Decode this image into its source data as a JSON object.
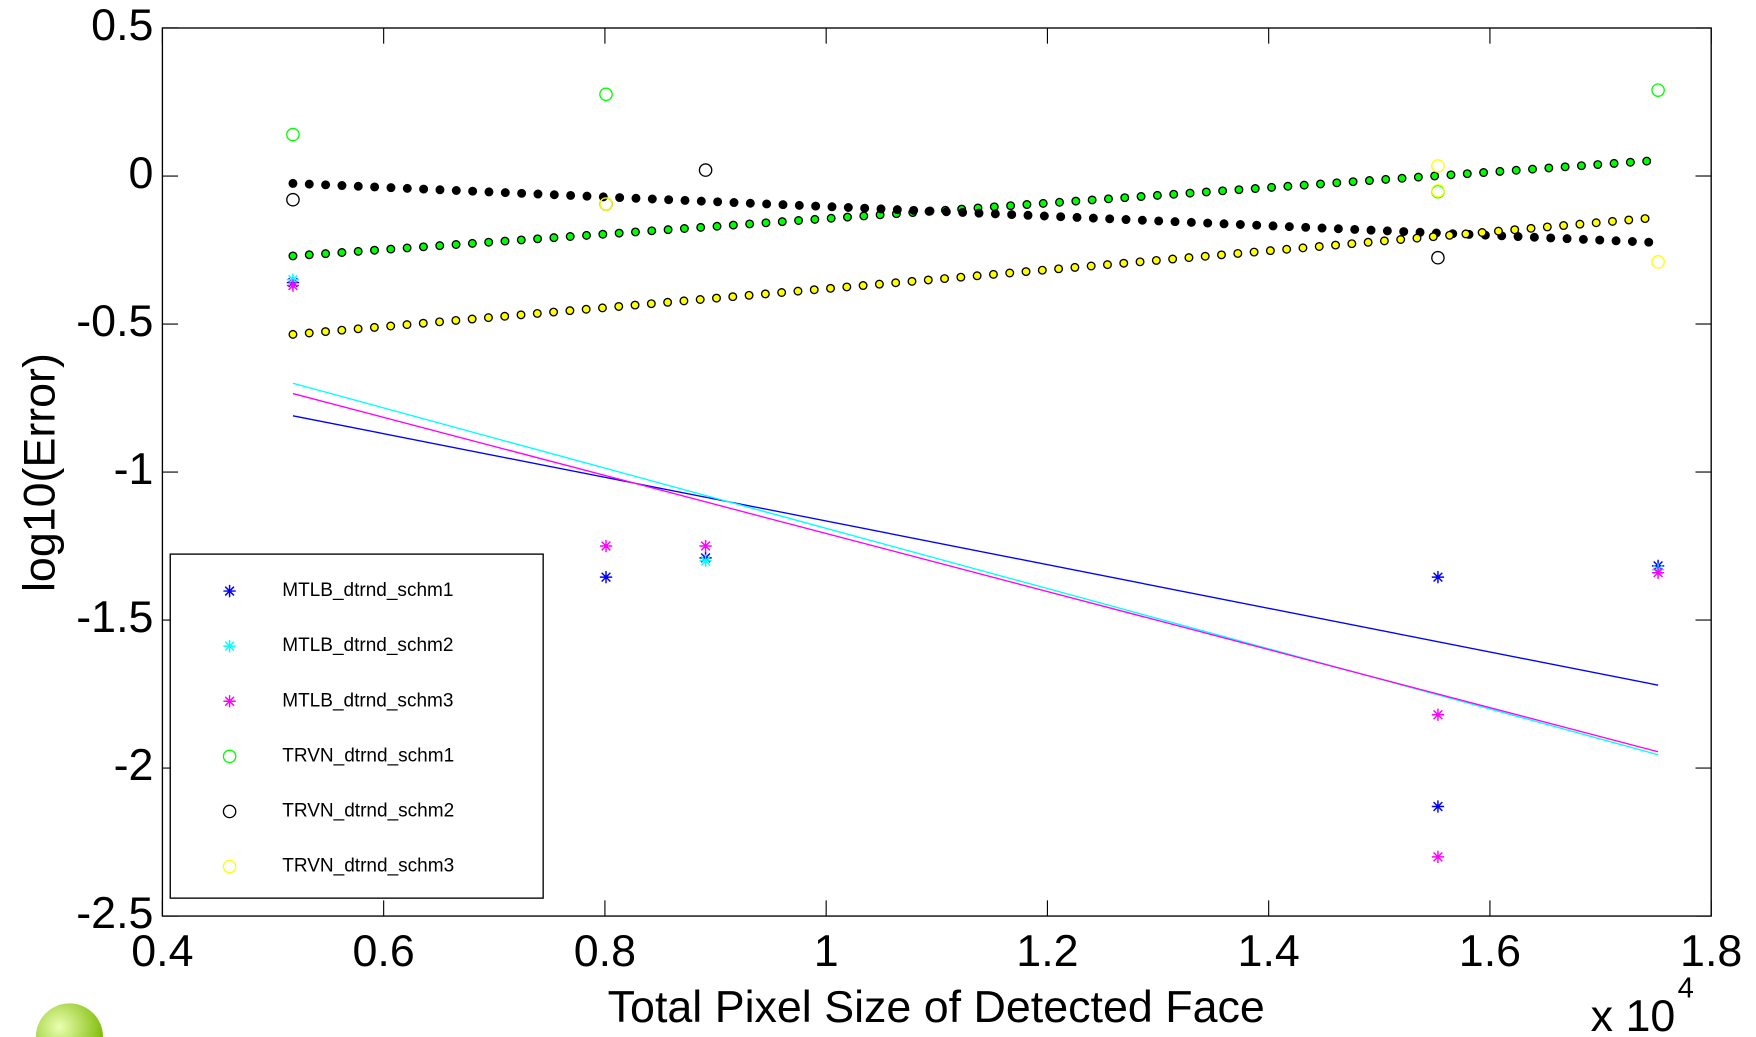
{
  "chart_data": {
    "type": "scatter",
    "xlabel": "Total Pixel Size of Detected Face",
    "ylabel": "log10(Error)",
    "x_multiplier": {
      "base": "x 10",
      "exponent": "4"
    },
    "xlim": [
      0.4,
      1.8
    ],
    "ylim": [
      -2.5,
      0.5
    ],
    "xticks": [
      0.4,
      0.6,
      0.8,
      1,
      1.2,
      1.4,
      1.6,
      1.8
    ],
    "yticks": [
      0.5,
      0,
      -0.5,
      -1,
      -1.5,
      -2,
      -2.5
    ],
    "grid": false,
    "legend": "lower left",
    "series": [
      {
        "name": "MTLB_dtrnd_schm1",
        "color": "#0000ff",
        "marker": "asterisk",
        "x": [
          0.518,
          0.801,
          0.891,
          1.553,
          1.553,
          1.752
        ],
        "values": [
          -0.36,
          -1.355,
          -1.29,
          -1.355,
          -2.13,
          -1.317
        ]
      },
      {
        "name": "MTLB_dtrnd_schm2",
        "color": "#00ffff",
        "marker": "asterisk",
        "x": [
          0.518,
          0.891,
          1.752
        ],
        "values": [
          -0.35,
          -1.3,
          -1.33
        ]
      },
      {
        "name": "MTLB_dtrnd_schm3",
        "color": "#ff00ff",
        "marker": "asterisk",
        "x": [
          0.518,
          0.801,
          0.891,
          1.553,
          1.553,
          1.752
        ],
        "values": [
          -0.37,
          -1.25,
          -1.25,
          -1.82,
          -2.3,
          -1.34
        ]
      },
      {
        "name": "TRVN_dtrnd_schm1",
        "color": "#00ff00",
        "marker": "circle",
        "x": [
          0.518,
          0.801,
          1.553,
          1.752
        ],
        "values": [
          0.14,
          0.276,
          -0.053,
          0.29
        ]
      },
      {
        "name": "TRVN_dtrnd_schm2",
        "color": "#000000",
        "marker": "circle",
        "x": [
          0.518,
          0.801,
          0.891,
          1.553
        ],
        "values": [
          -0.08,
          -0.095,
          0.02,
          -0.276
        ]
      },
      {
        "name": "TRVN_dtrnd_schm3",
        "color": "#ffff00",
        "marker": "circle",
        "x": [
          0.801,
          1.553,
          1.553,
          1.752
        ],
        "values": [
          -0.095,
          0.034,
          -0.05,
          -0.29
        ]
      }
    ],
    "fit_lines": [
      {
        "color": "#0000ff",
        "style": "solid",
        "x": [
          0.518,
          1.752
        ],
        "values": [
          -0.81,
          -1.72
        ]
      },
      {
        "color": "#00ffff",
        "style": "solid",
        "x": [
          0.518,
          1.752
        ],
        "values": [
          -0.7,
          -1.955
        ]
      },
      {
        "color": "#ff00ff",
        "style": "solid",
        "x": [
          0.518,
          1.752
        ],
        "values": [
          -0.735,
          -1.945
        ]
      },
      {
        "color": "#00ff00",
        "style": "dotted",
        "x": [
          0.518,
          1.752
        ],
        "values": [
          -0.27,
          0.053
        ]
      },
      {
        "color": "#000000",
        "style": "dotted",
        "x": [
          0.518,
          1.752
        ],
        "values": [
          -0.025,
          -0.225
        ]
      },
      {
        "color": "#ffff00",
        "style": "dotted",
        "x": [
          0.518,
          1.752
        ],
        "values": [
          -0.535,
          -0.14
        ]
      }
    ]
  }
}
